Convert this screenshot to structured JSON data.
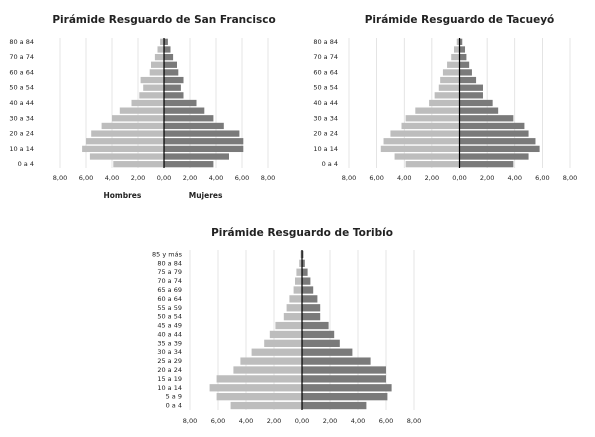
{
  "chart_data": [
    {
      "type": "bar",
      "orientation": "horizontal",
      "title": "Pirámide Resguardo de San Francisco",
      "categories": [
        "0 a 4",
        null,
        "10 a 14",
        null,
        "20 a 24",
        null,
        "30 a 34",
        null,
        "40 a 44",
        null,
        "50 a 54",
        null,
        "60 a 64",
        null,
        "70 a 74",
        null,
        "80 a 84"
      ],
      "series": [
        {
          "name": "Hombres",
          "color": "#bdbdbd",
          "values": [
            -3.9,
            -5.7,
            -6.3,
            -6.0,
            -5.6,
            -4.8,
            -4.0,
            -3.4,
            -2.5,
            -1.9,
            -1.6,
            -1.8,
            -1.1,
            -1.0,
            -0.7,
            -0.5,
            -0.3
          ]
        },
        {
          "name": "Mujeres",
          "color": "#7a7a7a",
          "values": [
            3.8,
            5.0,
            6.1,
            6.1,
            5.8,
            4.6,
            3.8,
            3.1,
            2.5,
            1.5,
            1.3,
            1.5,
            1.1,
            1.0,
            0.7,
            0.5,
            0.3
          ]
        }
      ],
      "xlim": [
        -8,
        8
      ],
      "xticks": [
        {
          "value": -8,
          "label": "8,00"
        },
        {
          "value": -6,
          "label": "6,00"
        },
        {
          "value": -4,
          "label": "4,00"
        },
        {
          "value": -2,
          "label": "2,00"
        },
        {
          "value": 0,
          "label": "0,00"
        },
        {
          "value": 2,
          "label": "2,00"
        },
        {
          "value": 4,
          "label": "4,00"
        },
        {
          "value": 6,
          "label": "6,00"
        },
        {
          "value": 8,
          "label": "8,00"
        }
      ],
      "grid": true,
      "legend": "bottom"
    },
    {
      "type": "bar",
      "orientation": "horizontal",
      "title": "Pirámide Resguardo de Tacueyó",
      "categories": [
        "0 a 4",
        null,
        "10 a 14",
        null,
        "20 a 24",
        null,
        "30 a 34",
        null,
        "40 a 44",
        null,
        "50 a 54",
        null,
        "60 a 64",
        null,
        "70 a 74",
        null,
        "80 a 84"
      ],
      "series": [
        {
          "color": "#bdbdbd",
          "values": [
            -3.9,
            -4.7,
            -5.7,
            -5.5,
            -5.0,
            -4.2,
            -3.9,
            -3.2,
            -2.2,
            -1.8,
            -1.5,
            -1.4,
            -1.2,
            -0.9,
            -0.6,
            -0.4,
            -0.2
          ]
        },
        {
          "color": "#7a7a7a",
          "values": [
            3.9,
            5.0,
            5.8,
            5.5,
            5.0,
            4.7,
            3.9,
            2.8,
            2.4,
            1.7,
            1.7,
            1.2,
            0.9,
            0.7,
            0.5,
            0.4,
            0.2
          ]
        }
      ],
      "xlim": [
        -8,
        8
      ],
      "xticks": [
        {
          "value": -8,
          "label": "8,00"
        },
        {
          "value": -6,
          "label": "6,00"
        },
        {
          "value": -4,
          "label": "4,00"
        },
        {
          "value": -2,
          "label": "2,00"
        },
        {
          "value": 0,
          "label": "0,00"
        },
        {
          "value": 2,
          "label": "2,00"
        },
        {
          "value": 4,
          "label": "4,00"
        },
        {
          "value": 6,
          "label": "6,00"
        },
        {
          "value": 8,
          "label": "8,00"
        }
      ],
      "grid": true
    },
    {
      "type": "bar",
      "orientation": "horizontal",
      "title": "Pirámide Resguardo de Toribío",
      "categories": [
        "0 a 4",
        "5 a 9",
        "10 a 14",
        "15 a 19",
        "20 a 24",
        "25 a 29",
        "30 a 34",
        "35 a 39",
        "40 a 44",
        "45 a 49",
        "50 a 54",
        "55 a 59",
        "60 a 64",
        "65 a 69",
        "70 a 74",
        "75 a 79",
        "80 a 84",
        "85 y más"
      ],
      "series": [
        {
          "color": "#bdbdbd",
          "values": [
            -5.1,
            -6.1,
            -6.6,
            -6.1,
            -4.9,
            -4.4,
            -3.6,
            -2.7,
            -2.3,
            -1.9,
            -1.3,
            -1.1,
            -0.9,
            -0.6,
            -0.5,
            -0.4,
            -0.2,
            -0.1
          ]
        },
        {
          "color": "#7a7a7a",
          "values": [
            4.6,
            6.1,
            6.4,
            6.0,
            6.0,
            4.9,
            3.6,
            2.7,
            2.3,
            1.9,
            1.3,
            1.3,
            1.1,
            0.8,
            0.6,
            0.4,
            0.2,
            0.1
          ]
        }
      ],
      "xlim": [
        -8,
        8
      ],
      "xticks": [
        {
          "value": -8,
          "label": "8,00"
        },
        {
          "value": -6,
          "label": "6,00"
        },
        {
          "value": -4,
          "label": "4,00"
        },
        {
          "value": -2,
          "label": "2,00"
        },
        {
          "value": 0,
          "label": "0,00"
        },
        {
          "value": 2,
          "label": "2,00"
        },
        {
          "value": 4,
          "label": "4,00"
        },
        {
          "value": 6,
          "label": "6,00"
        },
        {
          "value": 8,
          "label": "8,00"
        }
      ],
      "grid": true
    }
  ]
}
